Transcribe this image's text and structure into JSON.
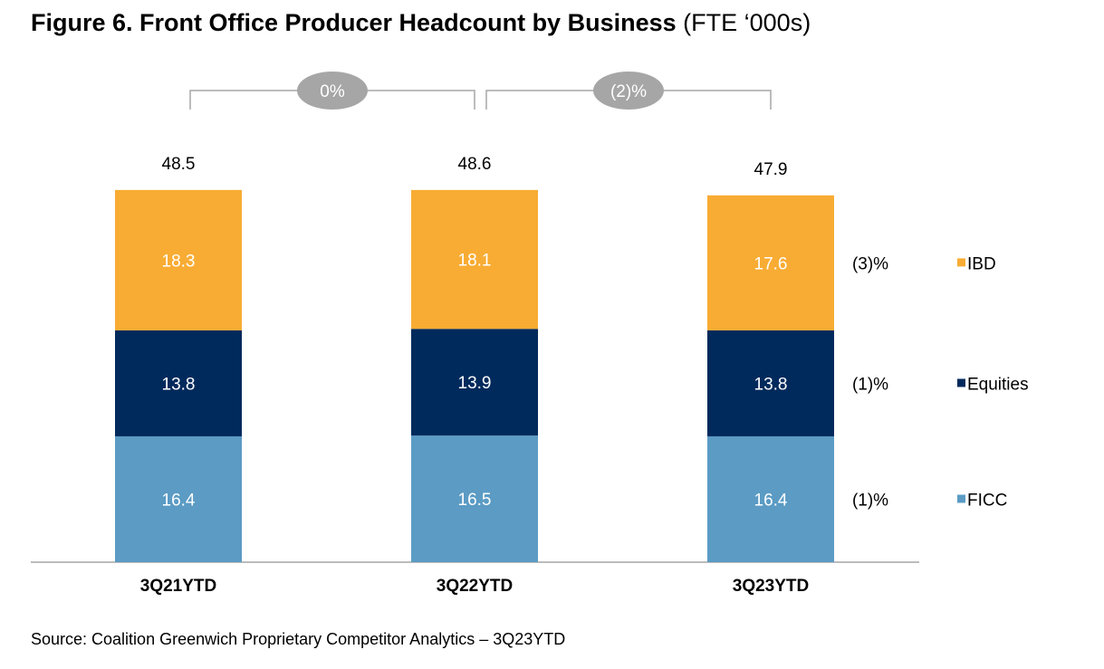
{
  "title": {
    "bold": "Figure 6. Front Office Producer Headcount by Business",
    "unit": "(FTE ‘000s)"
  },
  "source": "Source: Coalition Greenwich Proprietary Competitor Analytics – 3Q23YTD",
  "chart_data": {
    "type": "bar",
    "stacked": true,
    "categories": [
      "3Q21YTD",
      "3Q22YTD",
      "3Q23YTD"
    ],
    "series": [
      {
        "name": "FICC",
        "values": [
          16.4,
          16.5,
          16.4
        ],
        "color": "#5b9bc4",
        "change": "(1)%"
      },
      {
        "name": "Equities",
        "values": [
          13.8,
          13.9,
          13.8
        ],
        "color": "#002a5c",
        "change": "(1)%"
      },
      {
        "name": "IBD",
        "values": [
          18.3,
          18.1,
          17.6
        ],
        "color": "#f8ac33",
        "change": "(3)%"
      }
    ],
    "totals": [
      "48.5",
      "48.6",
      "47.9"
    ],
    "value_labels": [
      [
        "16.4",
        "16.5",
        "16.4"
      ],
      [
        "13.8",
        "13.9",
        "13.8"
      ],
      [
        "18.3",
        "18.1",
        "17.6"
      ]
    ],
    "comparisons": [
      {
        "label": "0%"
      },
      {
        "label": "(2)%"
      }
    ],
    "ylim": [
      0,
      48.6
    ],
    "legend_position": "right",
    "grid": false
  }
}
